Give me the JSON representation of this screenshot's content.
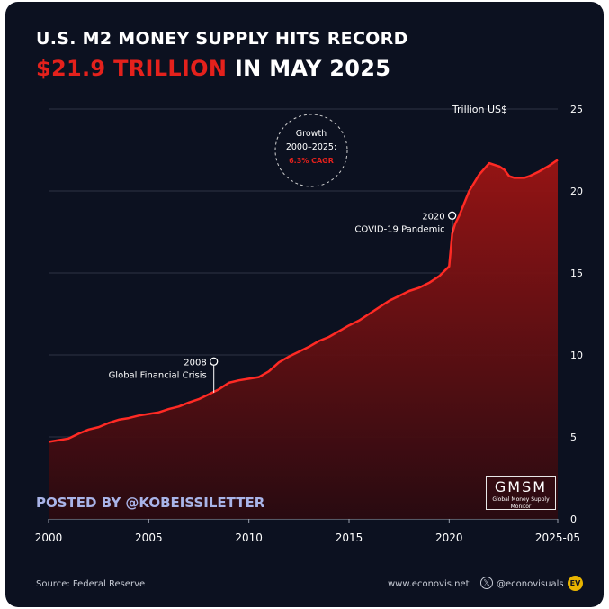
{
  "header": {
    "title_line1": "U.S. M2 MONEY SUPPLY HITS RECORD",
    "title_accent": "$21.9 TRILLION",
    "title_rest": " IN MAY 2025"
  },
  "posted_by": "POSTED BY @KOBEISSILETTER",
  "logo": {
    "main": "GMSM",
    "sub": "Global Money Supply Monitor"
  },
  "footer": {
    "source": "Source: Federal Reserve",
    "website": "www.econovis.net",
    "x_icon": "x-logo-icon",
    "handle": "@econovisuals",
    "ev_badge": "EV"
  },
  "colors": {
    "background": "#0c1120",
    "accent": "#e4211c",
    "line": "#ff2a24",
    "text": "#ffffff",
    "posted": "#a9b4e8"
  },
  "chart_data": {
    "type": "area",
    "title": "U.S. M2 MONEY SUPPLY HITS RECORD $21.9 TRILLION IN MAY 2025",
    "unit_label": "Trillion US$",
    "y_axis_position": "right",
    "ylim": [
      0,
      25
    ],
    "y_ticks": [
      0,
      5,
      10,
      15,
      20,
      25
    ],
    "y_tick_labels": [
      "0",
      "5",
      "10",
      "15",
      "20",
      "25"
    ],
    "xlim": [
      2000,
      2025.42
    ],
    "x_ticks": [
      2000,
      2005,
      2010,
      2015,
      2020,
      2025.42
    ],
    "x_tick_labels": [
      "2000",
      "2005",
      "2010",
      "2015",
      "2020",
      "2025-05"
    ],
    "grid": true,
    "series": [
      {
        "x": [
          2000,
          2000.5,
          2001,
          2001.5,
          2002,
          2002.5,
          2003,
          2003.5,
          2004,
          2004.5,
          2005,
          2005.5,
          2006,
          2006.5,
          2007,
          2007.5,
          2008,
          2008.5,
          2009,
          2009.5,
          2010,
          2010.5,
          2011,
          2011.5,
          2012,
          2012.5,
          2013,
          2013.5,
          2014,
          2014.5,
          2015,
          2015.5,
          2016,
          2016.5,
          2017,
          2017.5,
          2018,
          2018.5,
          2019,
          2019.5,
          2020,
          2020.15,
          2020.3,
          2020.5,
          2021,
          2021.5,
          2022,
          2022.25,
          2022.5,
          2022.75,
          2023,
          2023.25,
          2023.5,
          2023.75,
          2024,
          2024.5,
          2025,
          2025.42
        ],
        "y": [
          4.7,
          4.8,
          4.9,
          5.2,
          5.45,
          5.6,
          5.85,
          6.05,
          6.15,
          6.3,
          6.4,
          6.5,
          6.7,
          6.85,
          7.1,
          7.3,
          7.6,
          7.9,
          8.3,
          8.45,
          8.55,
          8.65,
          9.0,
          9.55,
          9.9,
          10.2,
          10.5,
          10.85,
          11.1,
          11.45,
          11.8,
          12.1,
          12.5,
          12.9,
          13.3,
          13.6,
          13.9,
          14.1,
          14.4,
          14.8,
          15.4,
          17.4,
          18.0,
          18.5,
          20.0,
          21.0,
          21.7,
          21.6,
          21.5,
          21.3,
          20.9,
          20.8,
          20.8,
          20.8,
          20.9,
          21.2,
          21.55,
          21.9
        ]
      }
    ],
    "annotations": [
      {
        "x": 2008.25,
        "y": 7.7,
        "year": "2008",
        "label": "Global Financial Crisis"
      },
      {
        "x": 2020.15,
        "y": 17.4,
        "year": "2020",
        "label": "COVID-19 Pandemic"
      }
    ],
    "callout": {
      "line1": "Growth",
      "line2": "2000–2025:",
      "line3": "6.3% CAGR"
    }
  }
}
